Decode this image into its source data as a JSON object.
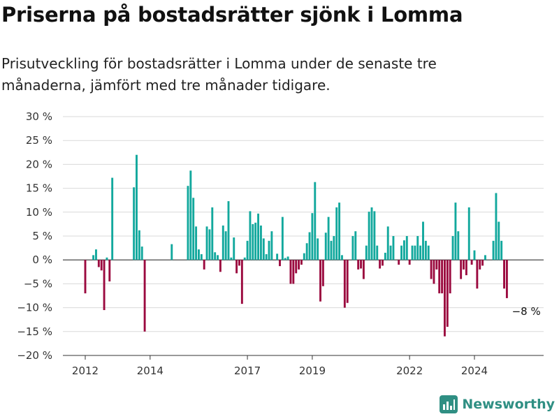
{
  "header": {
    "title": "Priserna på bostadsrätter sjönk i Lomma",
    "subtitle": "Prisutveckling för bostadsrätter i Lomma under de senaste tre månaderna, jämfört med tre månader tidigare."
  },
  "brand": {
    "name": "Newsworthy",
    "icon": "bar-chart-logo-icon",
    "color": "#2f8f83"
  },
  "colors": {
    "positive": "#12a89d",
    "negative": "#9b0a3f",
    "grid": "#d9d9d9",
    "axis": "#333333"
  },
  "chart_data": {
    "type": "bar",
    "title": "Priserna på bostadsrätter sjönk i Lomma",
    "xlabel": "",
    "ylabel": "",
    "ylim": [
      -20,
      30
    ],
    "y_ticks": [
      30,
      25,
      20,
      15,
      10,
      5,
      0,
      -5,
      -10,
      -15,
      -20
    ],
    "y_tick_labels": [
      "30 %",
      "25 %",
      "20 %",
      "15 %",
      "10 %",
      "5 %",
      "0 %",
      "−5 %",
      "−10 %",
      "−15 %",
      "−20 %"
    ],
    "x_tick_labels": [
      {
        "label": "2012",
        "date": "2012-01"
      },
      {
        "label": "2014",
        "date": "2014-01"
      },
      {
        "label": "2017",
        "date": "2017-01"
      },
      {
        "label": "2019",
        "date": "2019-01"
      },
      {
        "label": "2022",
        "date": "2022-01"
      },
      {
        "label": "2024",
        "date": "2024-01"
      }
    ],
    "annotation": {
      "text": "−8 %",
      "date": "2025-03"
    },
    "grid": true,
    "legend": "none",
    "x": [
      "2012-01",
      "2012-02",
      "2012-03",
      "2012-04",
      "2012-05",
      "2012-06",
      "2012-07",
      "2012-08",
      "2012-09",
      "2012-10",
      "2012-11",
      "2012-12",
      "2013-01",
      "2013-02",
      "2013-03",
      "2013-04",
      "2013-05",
      "2013-06",
      "2013-07",
      "2013-08",
      "2013-09",
      "2013-10",
      "2013-11",
      "2013-12",
      "2014-01",
      "2014-02",
      "2014-03",
      "2014-04",
      "2014-05",
      "2014-06",
      "2014-07",
      "2014-08",
      "2014-09",
      "2014-10",
      "2014-11",
      "2014-12",
      "2015-01",
      "2015-02",
      "2015-03",
      "2015-04",
      "2015-05",
      "2015-06",
      "2015-07",
      "2015-08",
      "2015-09",
      "2015-10",
      "2015-11",
      "2015-12",
      "2016-01",
      "2016-02",
      "2016-03",
      "2016-04",
      "2016-05",
      "2016-06",
      "2016-07",
      "2016-08",
      "2016-09",
      "2016-10",
      "2016-11",
      "2016-12",
      "2017-01",
      "2017-02",
      "2017-03",
      "2017-04",
      "2017-05",
      "2017-06",
      "2017-07",
      "2017-08",
      "2017-09",
      "2017-10",
      "2017-11",
      "2017-12",
      "2018-01",
      "2018-02",
      "2018-03",
      "2018-04",
      "2018-05",
      "2018-06",
      "2018-07",
      "2018-08",
      "2018-09",
      "2018-10",
      "2018-11",
      "2018-12",
      "2019-01",
      "2019-02",
      "2019-03",
      "2019-04",
      "2019-05",
      "2019-06",
      "2019-07",
      "2019-08",
      "2019-09",
      "2019-10",
      "2019-11",
      "2019-12",
      "2020-01",
      "2020-02",
      "2020-03",
      "2020-04",
      "2020-05",
      "2020-06",
      "2020-07",
      "2020-08",
      "2020-09",
      "2020-10",
      "2020-11",
      "2020-12",
      "2021-01",
      "2021-02",
      "2021-03",
      "2021-04",
      "2021-05",
      "2021-06",
      "2021-07",
      "2021-08",
      "2021-09",
      "2021-10",
      "2021-11",
      "2021-12",
      "2022-01",
      "2022-02",
      "2022-03",
      "2022-04",
      "2022-05",
      "2022-06",
      "2022-07",
      "2022-08",
      "2022-09",
      "2022-10",
      "2022-11",
      "2022-12",
      "2023-01",
      "2023-02",
      "2023-03",
      "2023-04",
      "2023-05",
      "2023-06",
      "2023-07",
      "2023-08",
      "2023-09",
      "2023-10",
      "2023-11",
      "2023-12",
      "2024-01",
      "2024-02",
      "2024-03",
      "2024-04",
      "2024-05",
      "2024-06",
      "2024-07",
      "2024-08",
      "2024-09",
      "2024-10",
      "2024-11",
      "2024-12",
      "2025-01",
      "2025-02",
      "2025-03"
    ],
    "values": [
      -7,
      null,
      null,
      1,
      2.2,
      -1.5,
      -2.2,
      -10.5,
      0.5,
      -4.5,
      17.2,
      null,
      null,
      null,
      null,
      null,
      null,
      null,
      15.2,
      22,
      6.2,
      2.8,
      -15,
      null,
      null,
      null,
      null,
      null,
      null,
      null,
      null,
      null,
      3.3,
      null,
      null,
      null,
      null,
      null,
      15.5,
      18.7,
      13,
      7,
      2.2,
      1.2,
      -2,
      7,
      6.4,
      11,
      1.6,
      1,
      -2.5,
      7.2,
      6,
      12.3,
      0.5,
      4.7,
      -2.8,
      -1.2,
      -9.2,
      0.5,
      4,
      10.2,
      7.5,
      7.8,
      9.7,
      7.2,
      4.5,
      1.2,
      4,
      6,
      null,
      1.3,
      -1.3,
      9,
      0.4,
      0.7,
      -5,
      -5,
      -2.8,
      -2,
      -1,
      1.4,
      3.5,
      5.8,
      9.8,
      16.3,
      4.5,
      -8.7,
      -5.5,
      5.7,
      9,
      4,
      5,
      11,
      12,
      1,
      -10,
      -9,
      null,
      5,
      6,
      -2,
      -1.8,
      -4,
      3,
      10.1,
      11,
      10.2,
      3,
      -1.8,
      -1.2,
      1.5,
      7,
      3,
      5,
      null,
      -1,
      3,
      4.1,
      5,
      -1,
      3,
      3,
      5,
      3,
      8,
      4,
      3,
      -4,
      -5,
      -2,
      -7,
      -7,
      -16,
      -14,
      -7,
      5,
      12,
      6,
      -4,
      -2,
      -3.2,
      11,
      -1,
      2,
      -6,
      -2,
      -1.2,
      1,
      null,
      null,
      4,
      14,
      8,
      4,
      -6,
      -8,
      null,
      null
    ]
  }
}
